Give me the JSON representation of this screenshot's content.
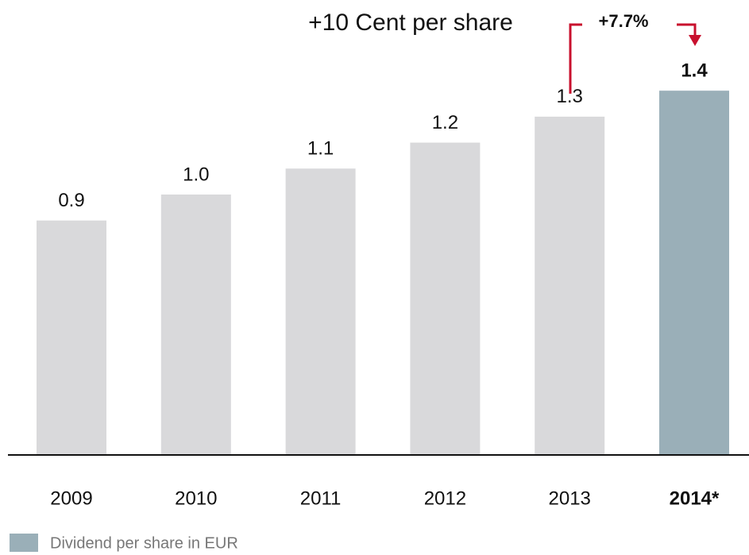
{
  "chart_data": {
    "type": "bar",
    "categories": [
      "2009",
      "2010",
      "2011",
      "2012",
      "2013",
      "2014*"
    ],
    "values": [
      0.9,
      1.0,
      1.1,
      1.2,
      1.3,
      1.4
    ],
    "value_labels": [
      "0.9",
      "1.0",
      "1.1",
      "1.2",
      "1.3",
      "1.4"
    ],
    "colors": [
      "#d9d9db",
      "#d9d9db",
      "#d9d9db",
      "#d9d9db",
      "#d9d9db",
      "#9aafb8"
    ],
    "emphasis": [
      false,
      false,
      false,
      false,
      false,
      true
    ],
    "legend": {
      "name": "Dividend per share in EUR",
      "color": "#9aafb8"
    },
    "annotations": [
      "+10 Cent per share",
      "+7.7%"
    ]
  }
}
